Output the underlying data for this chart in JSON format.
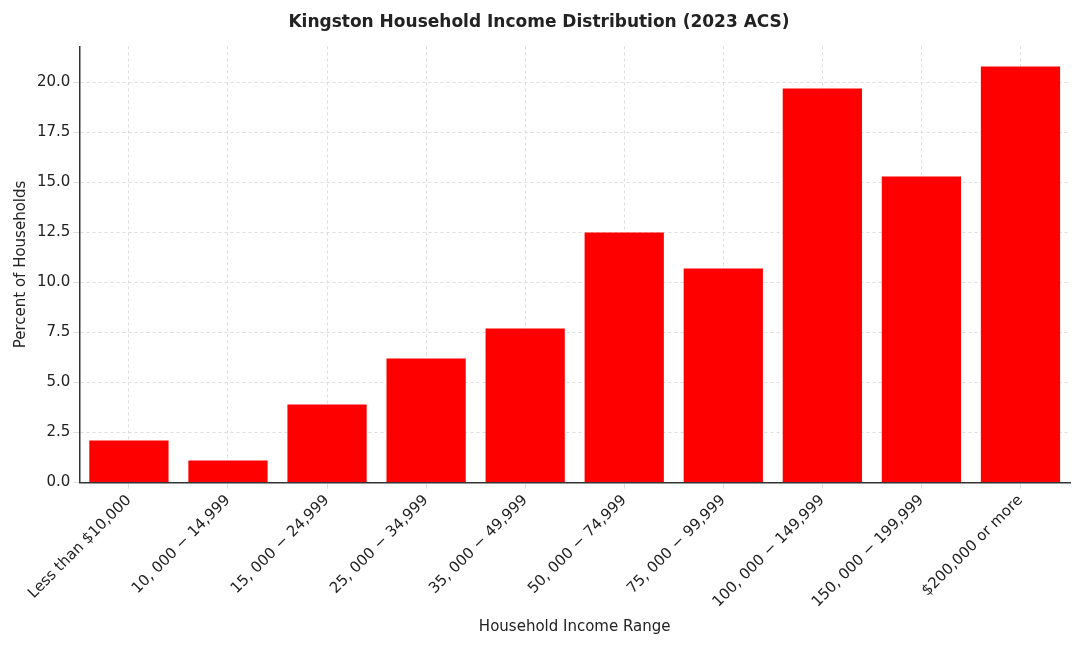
{
  "chart_data": {
    "type": "bar",
    "title": "Kingston Household Income Distribution (2023 ACS)",
    "xlabel": "Household Income Range",
    "ylabel": "Percent of Households",
    "categories": [
      "Less than $10,000",
      "10, 000 − 14,999",
      "15, 000 − 24,999",
      "25, 000 − 34,999",
      "35, 000 − 49,999",
      "50, 000 − 74,999",
      "75, 000 − 99,999",
      "100, 000 − 149,999",
      "150, 000 − 199,999",
      "$200,000 or more"
    ],
    "values": [
      2.1,
      1.1,
      3.9,
      6.2,
      7.7,
      12.5,
      10.7,
      19.7,
      15.3,
      20.8
    ],
    "color": "#ff0000",
    "ylim": [
      0,
      21.8
    ],
    "yticks": [
      {
        "value": 0,
        "label": "0.0"
      },
      {
        "value": 2.5,
        "label": "2.5"
      },
      {
        "value": 5,
        "label": "5.0"
      },
      {
        "value": 7.5,
        "label": "7.5"
      },
      {
        "value": 10,
        "label": "10.0"
      },
      {
        "value": 12.5,
        "label": "12.5"
      },
      {
        "value": 15,
        "label": "15.0"
      },
      {
        "value": 17.5,
        "label": "17.5"
      },
      {
        "value": 20,
        "label": "20.0"
      }
    ],
    "grid": true,
    "legend": false
  }
}
